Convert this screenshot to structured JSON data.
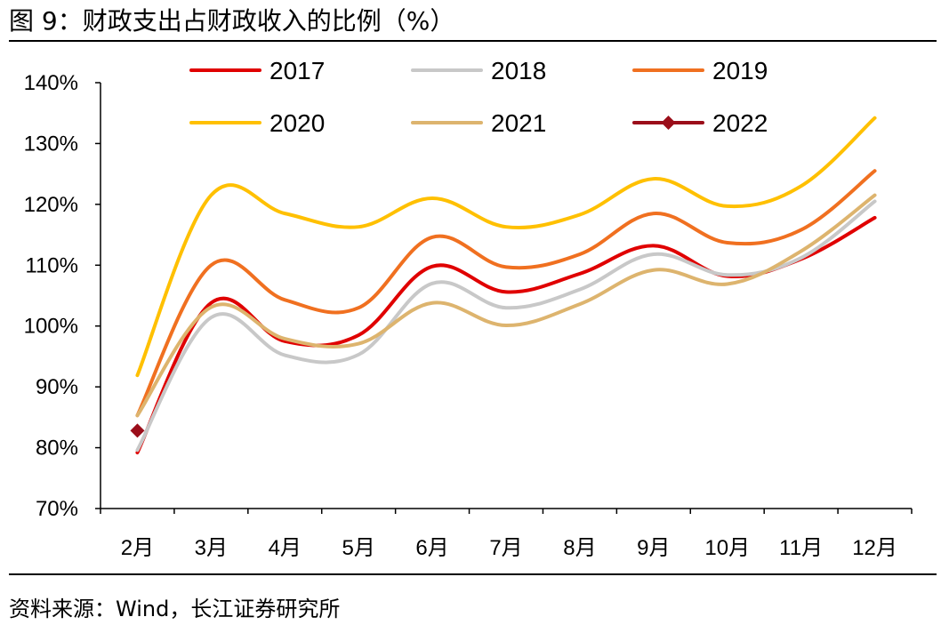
{
  "title": "图 9：财政支出占财政收入的比例（%）",
  "source": "资料来源：Wind，长江证券研究所",
  "chart_data": {
    "type": "line",
    "title": "",
    "xlabel": "",
    "ylabel": "",
    "categories": [
      "2月",
      "3月",
      "4月",
      "5月",
      "6月",
      "7月",
      "8月",
      "9月",
      "10月",
      "11月",
      "12月"
    ],
    "y_tick_labels": [
      "70%",
      "80%",
      "90%",
      "100%",
      "110%",
      "120%",
      "130%",
      "140%"
    ],
    "y_ticks": [
      70,
      80,
      90,
      100,
      110,
      120,
      130,
      140
    ],
    "ylim": [
      70,
      140
    ],
    "grid": false,
    "legend_position": "top",
    "smooth": true,
    "series": [
      {
        "name": "2017",
        "color": "#E00000",
        "marker": "none",
        "values": [
          79.2,
          103.8,
          97.5,
          98.5,
          109.8,
          105.6,
          108.6,
          113.2,
          108.2,
          111.0,
          117.8
        ]
      },
      {
        "name": "2018",
        "color": "#C8C8C8",
        "marker": "none",
        "values": [
          79.6,
          101.4,
          95.2,
          95.3,
          107.0,
          103.0,
          106.0,
          111.8,
          108.4,
          111.2,
          120.5
        ]
      },
      {
        "name": "2019",
        "color": "#F07020",
        "marker": "none",
        "values": [
          85.3,
          110.0,
          104.3,
          103.0,
          114.6,
          109.7,
          111.8,
          118.5,
          113.7,
          115.8,
          125.5
        ]
      },
      {
        "name": "2020",
        "color": "#FFC000",
        "marker": "none",
        "values": [
          91.9,
          121.5,
          118.5,
          116.3,
          121.0,
          116.3,
          118.3,
          124.2,
          119.7,
          123.0,
          134.2
        ]
      },
      {
        "name": "2021",
        "color": "#DDB46E",
        "marker": "none",
        "values": [
          85.3,
          103.1,
          97.9,
          97.1,
          103.8,
          100.1,
          103.6,
          109.2,
          106.9,
          112.3,
          121.5
        ]
      },
      {
        "name": "2022",
        "color": "#9B0E1A",
        "marker": "diamond",
        "values": [
          82.8,
          null,
          null,
          null,
          null,
          null,
          null,
          null,
          null,
          null,
          null
        ]
      }
    ]
  }
}
